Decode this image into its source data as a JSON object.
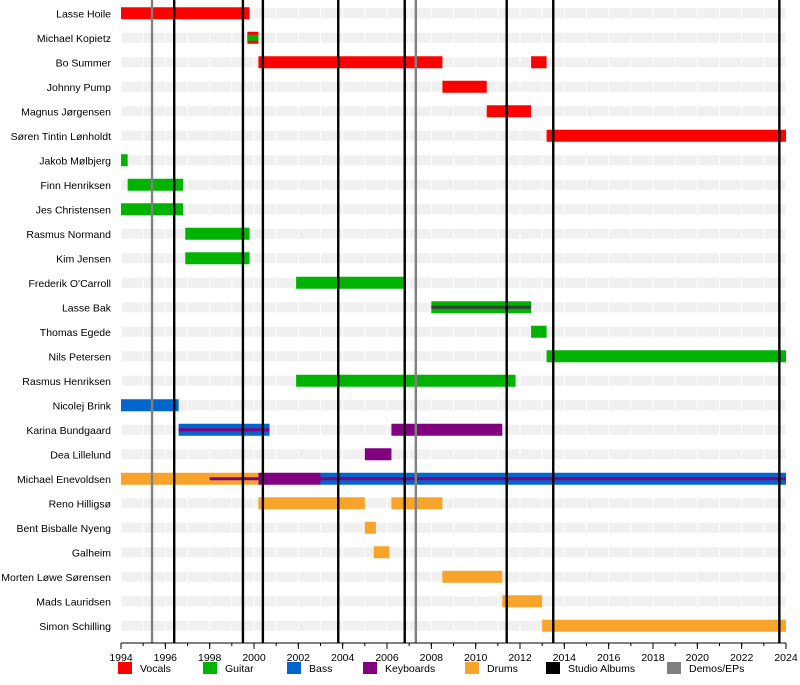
{
  "chart_data": {
    "type": "timeline",
    "x_axis": {
      "min": 1994,
      "max": 2024,
      "ticks": [
        1994,
        1996,
        1998,
        2000,
        2002,
        2004,
        2006,
        2008,
        2010,
        2012,
        2014,
        2016,
        2018,
        2020,
        2022,
        2024
      ]
    },
    "grid": true,
    "legend_placement": "bottom",
    "roles": [
      {
        "key": "vocals",
        "label": "Vocals",
        "color": "#ff0000"
      },
      {
        "key": "guitar",
        "label": "Guitar",
        "color": "#00b300"
      },
      {
        "key": "bass",
        "label": "Bass",
        "color": "#0066cc"
      },
      {
        "key": "keyboards",
        "label": "Keyboards",
        "color": "#800080"
      },
      {
        "key": "drums",
        "label": "Drums",
        "color": "#f8a42a"
      },
      {
        "key": "studio",
        "label": "Studio Albums",
        "color": "#000000"
      },
      {
        "key": "demos",
        "label": "Demos/EPs",
        "color": "#808080"
      }
    ],
    "studio_albums": [
      1996.4,
      1999.5,
      2000.4,
      2003.8,
      2006.8,
      2011.4,
      2013.5,
      2023.7
    ],
    "demos": [
      1995.4,
      2007.3
    ],
    "members": [
      {
        "name": "Lasse Hoile",
        "spans": [
          {
            "role": "vocals",
            "start": 1994.0,
            "end": 1999.8
          }
        ]
      },
      {
        "name": "Michael Kopietz",
        "spans": [
          {
            "role": "vocals",
            "start": 1999.7,
            "end": 2000.2,
            "secondary": "guitar"
          }
        ]
      },
      {
        "name": "Bo Summer",
        "spans": [
          {
            "role": "vocals",
            "start": 2000.2,
            "end": 2008.5
          },
          {
            "role": "vocals",
            "start": 2012.5,
            "end": 2013.2
          }
        ]
      },
      {
        "name": "Johnny Pump",
        "spans": [
          {
            "role": "vocals",
            "start": 2008.5,
            "end": 2010.5
          }
        ]
      },
      {
        "name": "Magnus Jørgensen",
        "spans": [
          {
            "role": "vocals",
            "start": 2010.5,
            "end": 2012.5
          }
        ]
      },
      {
        "name": "Søren Tintin Lønholdt",
        "spans": [
          {
            "role": "vocals",
            "start": 2013.2,
            "end": 2024.0
          }
        ]
      },
      {
        "name": "Jakob Mølbjerg",
        "spans": [
          {
            "role": "guitar",
            "start": 1994.0,
            "end": 1994.3
          }
        ]
      },
      {
        "name": "Finn Henriksen",
        "spans": [
          {
            "role": "guitar",
            "start": 1994.3,
            "end": 1996.8
          }
        ]
      },
      {
        "name": "Jes Christensen",
        "spans": [
          {
            "role": "guitar",
            "start": 1994.0,
            "end": 1996.8
          }
        ]
      },
      {
        "name": "Rasmus Normand",
        "spans": [
          {
            "role": "guitar",
            "start": 1996.9,
            "end": 1999.8
          }
        ]
      },
      {
        "name": "Kim Jensen",
        "spans": [
          {
            "role": "guitar",
            "start": 1996.9,
            "end": 1999.8
          }
        ]
      },
      {
        "name": "Frederik O'Carroll",
        "spans": [
          {
            "role": "guitar",
            "start": 2001.9,
            "end": 2006.8
          }
        ]
      },
      {
        "name": "Lasse Bak",
        "spans": [
          {
            "role": "guitar",
            "start": 2008.0,
            "end": 2012.5,
            "secondary": "#3a3a3a"
          }
        ]
      },
      {
        "name": "Thomas Egede",
        "spans": [
          {
            "role": "guitar",
            "start": 2012.5,
            "end": 2013.2
          }
        ]
      },
      {
        "name": "Nils Petersen",
        "spans": [
          {
            "role": "guitar",
            "start": 2013.2,
            "end": 2024.0
          }
        ]
      },
      {
        "name": "Rasmus Henriksen",
        "spans": [
          {
            "role": "guitar",
            "start": 2001.9,
            "end": 2011.8
          }
        ]
      },
      {
        "name": "Nicolej Brink",
        "spans": [
          {
            "role": "bass",
            "start": 1994.0,
            "end": 1996.6
          }
        ]
      },
      {
        "name": "Karina Bundgaard",
        "spans": [
          {
            "role": "bass",
            "start": 1996.6,
            "end": 2000.7,
            "secondary": "keyboards"
          },
          {
            "role": "keyboards",
            "start": 2006.2,
            "end": 2011.2
          }
        ]
      },
      {
        "name": "Dea Lillelund",
        "spans": [
          {
            "role": "keyboards",
            "start": 2005.0,
            "end": 2006.2
          }
        ]
      },
      {
        "name": "Michael Enevoldsen",
        "spans": [
          {
            "role": "drums",
            "start": 1994.0,
            "end": 2000.2,
            "secondary": "keyboards",
            "secondary_start": 1998.0
          },
          {
            "role": "keyboards",
            "start": 2000.2,
            "end": 2003.0
          },
          {
            "role": "bass",
            "start": 2003.0,
            "end": 2024.0,
            "secondary": "keyboards"
          }
        ]
      },
      {
        "name": "Reno Hilligsø",
        "spans": [
          {
            "role": "drums",
            "start": 2000.2,
            "end": 2005.0
          },
          {
            "role": "drums",
            "start": 2006.2,
            "end": 2008.5
          }
        ]
      },
      {
        "name": "Bent Bisballe Nyeng",
        "spans": [
          {
            "role": "drums",
            "start": 2005.0,
            "end": 2005.5
          }
        ]
      },
      {
        "name": "Galheim",
        "spans": [
          {
            "role": "drums",
            "start": 2005.4,
            "end": 2006.1
          }
        ]
      },
      {
        "name": "Morten Løwe Sørensen",
        "spans": [
          {
            "role": "drums",
            "start": 2008.5,
            "end": 2011.2
          }
        ]
      },
      {
        "name": "Mads Lauridsen",
        "spans": [
          {
            "role": "drums",
            "start": 2011.2,
            "end": 2013.0
          }
        ]
      },
      {
        "name": "Simon Schilling",
        "spans": [
          {
            "role": "drums",
            "start": 2013.0,
            "end": 2024.0
          }
        ]
      }
    ]
  }
}
